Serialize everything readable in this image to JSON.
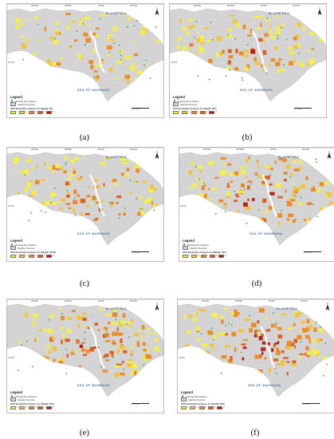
{
  "panels": [
    {
      "caption": "(a)",
      "legend_subtitle": "HFO Sensitivity Analysis for Weight: 0%",
      "density": 0.35
    },
    {
      "caption": "(b)",
      "legend_subtitle": "HFO Sensitivity Analysis for Weight: 20%",
      "density": 0.55
    },
    {
      "caption": "(c)",
      "legend_subtitle": "HFO Sensitivity Analysis for Weight: 33.3%",
      "density": 0.65
    },
    {
      "caption": "(d)",
      "legend_subtitle": "HFO Sensitivity Analysis for Weight: 40%",
      "density": 0.72
    },
    {
      "caption": "(e)",
      "legend_subtitle": "HFO Sensitivity Analysis for Weight: 50%",
      "density": 0.82
    },
    {
      "caption": "(f)",
      "legend_subtitle": "HFO Sensitivity Analysis for Weight: 60%",
      "density": 0.92
    }
  ],
  "map": {
    "black_sea_label": "BLACK SEA",
    "marmara_label": "SEA OF MARMARA",
    "legend_title": "Legend",
    "legend_item_stations": "Existing Fire Stations",
    "legend_item_province": "Istanbul Province",
    "class_labels": [
      "1",
      "2",
      "3",
      "4",
      "5"
    ],
    "lon_labels": [
      "28°40'E",
      "28°50'E",
      "29°0'E",
      "29°10'E"
    ],
    "lat_label": "41°0'N",
    "north_label": "N",
    "scale_label": "0  5  10 km"
  },
  "colors": {
    "land": "#d4d4d4",
    "yellow": "#f7f13a",
    "light_orange": "#f4c431",
    "orange": "#ec8a21",
    "dark_orange": "#dc5a16",
    "red": "#b8170e",
    "station_green": "#2fa84a",
    "sea_label": "#4b6a9a"
  }
}
